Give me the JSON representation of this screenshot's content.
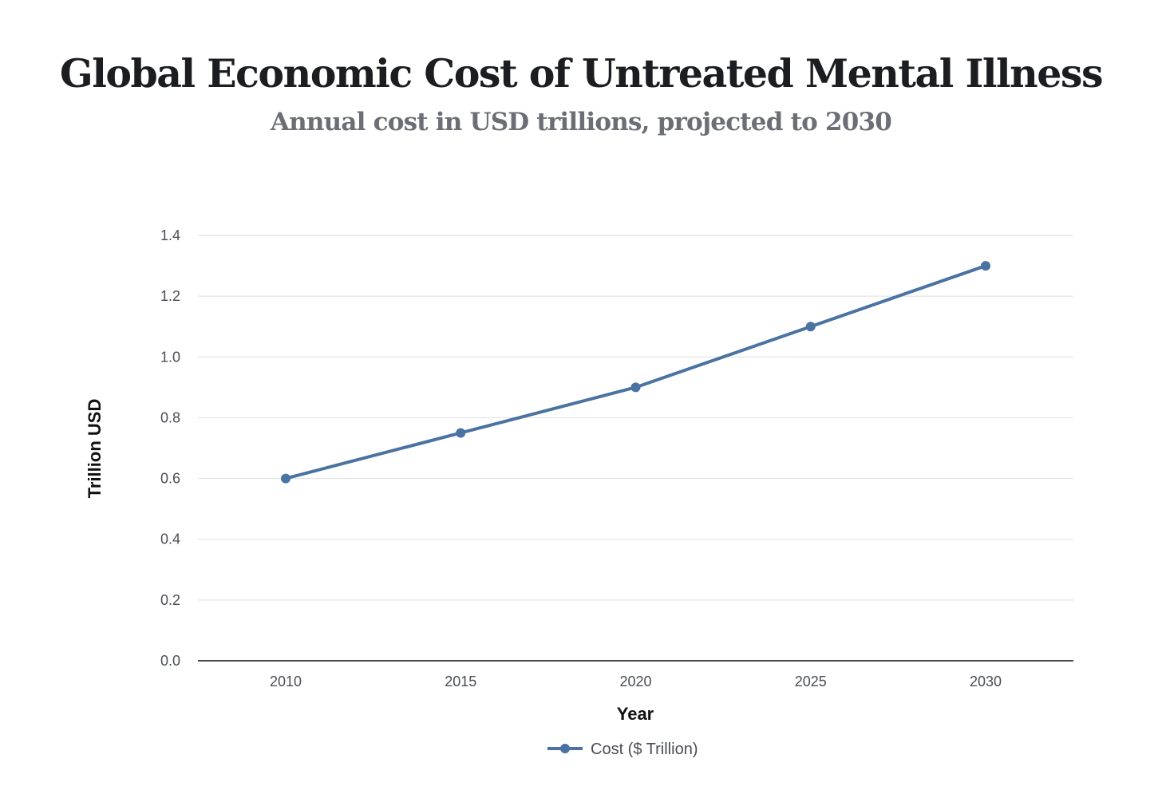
{
  "chart_data": {
    "type": "line",
    "title": "Global Economic Cost of Untreated Mental Illness",
    "subtitle": "Annual cost in USD trillions, projected to 2030",
    "xlabel": "Year",
    "ylabel": "Trillion USD",
    "categories": [
      "2010",
      "2015",
      "2020",
      "2025",
      "2030"
    ],
    "series": [
      {
        "name": "Cost ($ Trillion)",
        "values": [
          0.6,
          0.75,
          0.9,
          1.1,
          1.3
        ],
        "color": "#4a72a2"
      }
    ],
    "ylim": [
      0,
      1.4
    ],
    "yticks": [
      "0.0",
      "0.2",
      "0.4",
      "0.6",
      "0.8",
      "1.0",
      "1.2",
      "1.4"
    ],
    "grid": true,
    "legend_position": "bottom-center",
    "gridline_color": "#e4e4e7",
    "axis_color": "#111111"
  }
}
